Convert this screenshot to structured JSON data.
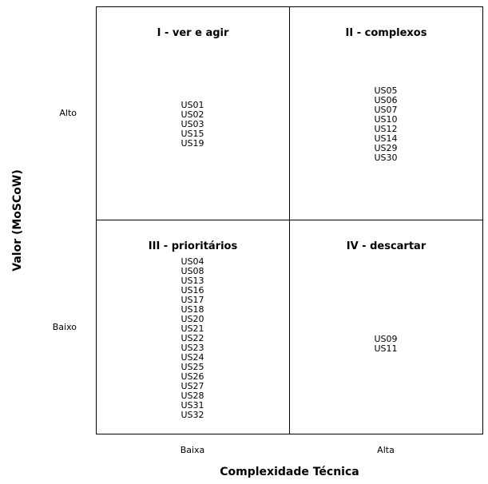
{
  "quadrants": {
    "q1": {
      "title": "I - ver e agir",
      "items": [
        "US01",
        "US02",
        "US03",
        "US15",
        "US19"
      ]
    },
    "q2": {
      "title": "II - complexos",
      "items": [
        "US05",
        "US06",
        "US07",
        "US10",
        "US12",
        "US14",
        "US29",
        "US30"
      ]
    },
    "q3": {
      "title": "III - prioritários",
      "items": [
        "US04",
        "US08",
        "US13",
        "US16",
        "US17",
        "US18",
        "US20",
        "US21",
        "US22",
        "US23",
        "US24",
        "US25",
        "US26",
        "US27",
        "US28",
        "US31",
        "US32"
      ]
    },
    "q4": {
      "title": "IV - descartar",
      "items": [
        "US09",
        "US11"
      ]
    }
  },
  "y_axis": {
    "label": "Valor (MoSCoW)",
    "ticks": [
      "Alto",
      "Baixo"
    ]
  },
  "x_axis": {
    "label": "Complexidade Técnica",
    "ticks": [
      "Baixa",
      "Alta"
    ]
  }
}
